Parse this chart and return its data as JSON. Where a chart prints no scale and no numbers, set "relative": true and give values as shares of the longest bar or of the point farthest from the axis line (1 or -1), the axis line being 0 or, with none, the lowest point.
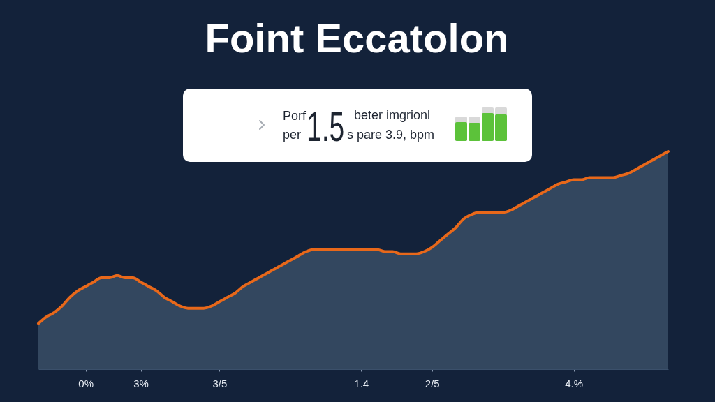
{
  "chart_data": [
    {
      "type": "area",
      "title": "Foint Eccatolon",
      "relative": true,
      "categories": [
        null,
        null,
        null,
        null,
        null,
        null,
        "0%",
        null,
        null,
        null,
        null,
        null,
        null,
        "3%",
        null,
        null,
        null,
        null,
        null,
        null,
        null,
        null,
        null,
        "3/5",
        null,
        null,
        null,
        null,
        null,
        null,
        null,
        null,
        null,
        null,
        null,
        null,
        null,
        null,
        null,
        null,
        null,
        "1.4",
        null,
        null,
        null,
        null,
        null,
        null,
        null,
        null,
        "2/5",
        null,
        null,
        null,
        null,
        null,
        null,
        null,
        null,
        null,
        null,
        null,
        null,
        null,
        null,
        null,
        null,
        null,
        "4.%",
        null,
        null,
        null,
        null,
        null,
        null,
        null,
        null,
        null,
        null,
        null,
        null
      ],
      "series": [
        {
          "type": "area",
          "color": "#33475f",
          "values": [
            0.21,
            0.24,
            0.26,
            0.29,
            0.33,
            0.36,
            0.38,
            0.4,
            0.42,
            0.42,
            0.43,
            0.42,
            0.42,
            0.4,
            0.38,
            0.36,
            0.33,
            0.31,
            0.29,
            0.28,
            0.28,
            0.28,
            0.29,
            0.31,
            0.33,
            0.35,
            0.38,
            0.4,
            0.42,
            0.44,
            0.46,
            0.48,
            0.5,
            0.52,
            0.54,
            0.55,
            0.55,
            0.55,
            0.55,
            0.55,
            0.55,
            0.55,
            0.55,
            0.55,
            0.54,
            0.54,
            0.53,
            0.53,
            0.53,
            0.54,
            0.56,
            0.59,
            0.62,
            0.65,
            0.69,
            0.71,
            0.72,
            0.72,
            0.72,
            0.72,
            0.73,
            0.75,
            0.77,
            0.79,
            0.81,
            0.83,
            0.85,
            0.86,
            0.87,
            0.87,
            0.88,
            0.88,
            0.88,
            0.88,
            0.89,
            0.9,
            0.92,
            0.94,
            0.96,
            0.98,
            1
          ]
        },
        {
          "type": "line",
          "color": "#e8681a",
          "values": [
            0.21,
            0.24,
            0.26,
            0.29,
            0.33,
            0.36,
            0.38,
            0.4,
            0.42,
            0.42,
            0.43,
            0.42,
            0.42,
            0.4,
            0.38,
            0.36,
            0.33,
            0.31,
            0.29,
            0.28,
            0.28,
            0.28,
            0.29,
            0.31,
            0.33,
            0.35,
            0.38,
            0.4,
            0.42,
            0.44,
            0.46,
            0.48,
            0.5,
            0.52,
            0.54,
            0.55,
            0.55,
            0.55,
            0.55,
            0.55,
            0.55,
            0.55,
            0.55,
            0.55,
            0.54,
            0.54,
            0.53,
            0.53,
            0.53,
            0.54,
            0.56,
            0.59,
            0.62,
            0.65,
            0.69,
            0.71,
            0.72,
            0.72,
            0.72,
            0.72,
            0.73,
            0.75,
            0.77,
            0.79,
            0.81,
            0.83,
            0.85,
            0.86,
            0.87,
            0.87,
            0.88,
            0.88,
            0.88,
            0.88,
            0.89,
            0.9,
            0.92,
            0.94,
            0.96,
            0.98,
            1
          ]
        }
      ]
    },
    {
      "type": "other",
      "annotations": [
        "Porf",
        "per",
        "1.5",
        "beter imgrionl",
        "s pare 3.9, bpm"
      ]
    }
  ]
}
